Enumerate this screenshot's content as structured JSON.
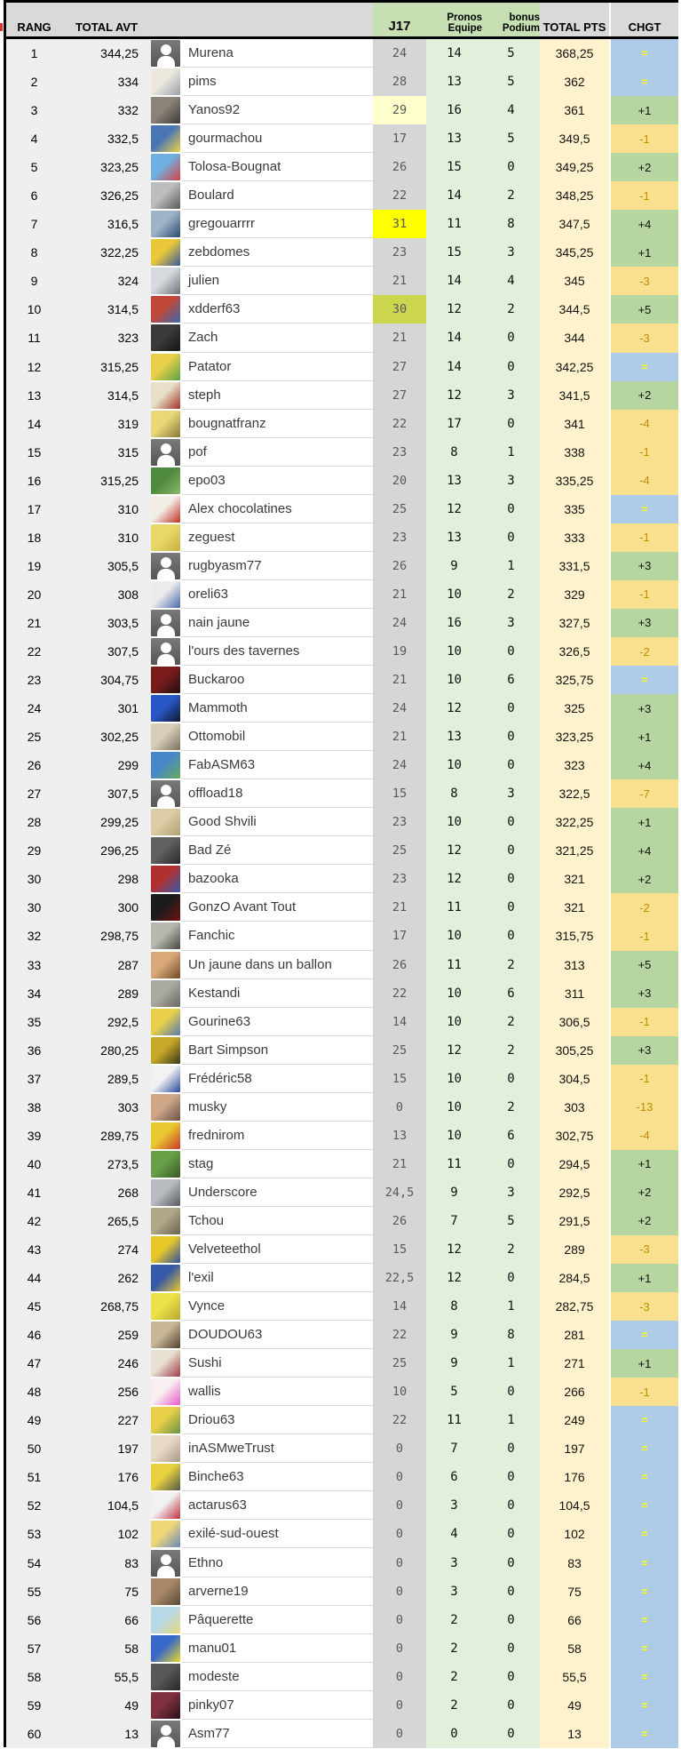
{
  "header": {
    "rank": "RANG",
    "total_avt": "TOTAL AVT",
    "j17": "J17",
    "pronos": {
      "l1": "Pronos",
      "l2": "Equipe"
    },
    "bonus": {
      "l1": "bonus",
      "l2": "Podium"
    },
    "total_pts": "TOTAL PTS",
    "chgt": "CHGT"
  },
  "colors": {
    "header_gray": "#d9d9d9",
    "header_green": "#c6e0b4",
    "body_left_gray": "#efefef",
    "j17_gray": "#d6d6d6",
    "j17_pale_yellow": "#ffffcc",
    "j17_bright_yellow": "#ffff00",
    "j17_lime": "#cbd54d",
    "pronos_green": "#e2efda",
    "pts_cream": "#fff2cc",
    "chgt_blue": "#aecce8",
    "chgt_green": "#b6d5a0",
    "chgt_yellow": "#f8e08e",
    "chgt_equal_text": "#ffff00",
    "chgt_down_text": "#bf8f00"
  },
  "rows": [
    {
      "rank": "1",
      "total_avt": "344,25",
      "name": "Murena",
      "j17": "24",
      "j17_bg": "",
      "pronos": "14",
      "bonus": "5",
      "total_pts": "368,25",
      "chgt": "=",
      "avatar": "default"
    },
    {
      "rank": "2",
      "total_avt": "334",
      "name": "pims",
      "j17": "28",
      "j17_bg": "",
      "pronos": "13",
      "bonus": "5",
      "total_pts": "362",
      "chgt": "=",
      "avatar": [
        "#ece8de",
        "#9aa0a8"
      ]
    },
    {
      "rank": "3",
      "total_avt": "332",
      "name": "Yanos92",
      "j17": "29",
      "j17_bg": "pale",
      "pronos": "16",
      "bonus": "4",
      "total_pts": "361",
      "chgt": "+1",
      "avatar": [
        "#8a8378",
        "#3c3a36"
      ]
    },
    {
      "rank": "4",
      "total_avt": "332,5",
      "name": "gourmachou",
      "j17": "17",
      "j17_bg": "",
      "pronos": "13",
      "bonus": "5",
      "total_pts": "349,5",
      "chgt": "-1",
      "avatar": [
        "#4a76b4",
        "#f0d040"
      ]
    },
    {
      "rank": "5",
      "total_avt": "323,25",
      "name": "Tolosa-Bougnat",
      "j17": "26",
      "j17_bg": "",
      "pronos": "15",
      "bonus": "0",
      "total_pts": "349,25",
      "chgt": "+2",
      "avatar": [
        "#6fb0e0",
        "#d84040"
      ]
    },
    {
      "rank": "6",
      "total_avt": "326,25",
      "name": "Boulard",
      "j17": "22",
      "j17_bg": "",
      "pronos": "14",
      "bonus": "2",
      "total_pts": "348,25",
      "chgt": "-1",
      "avatar": [
        "#bdbdbd",
        "#585858"
      ]
    },
    {
      "rank": "7",
      "total_avt": "316,5",
      "name": "gregouarrrr",
      "j17": "31",
      "j17_bg": "bright",
      "pronos": "11",
      "bonus": "8",
      "total_pts": "347,5",
      "chgt": "+4",
      "avatar": [
        "#9fb3c8",
        "#28496e"
      ]
    },
    {
      "rank": "8",
      "total_avt": "322,25",
      "name": "zebdomes",
      "j17": "23",
      "j17_bg": "",
      "pronos": "15",
      "bonus": "3",
      "total_pts": "345,25",
      "chgt": "+1",
      "avatar": [
        "#e8c838",
        "#3858a0"
      ]
    },
    {
      "rank": "9",
      "total_avt": "324",
      "name": "julien",
      "j17": "21",
      "j17_bg": "",
      "pronos": "14",
      "bonus": "4",
      "total_pts": "345",
      "chgt": "-3",
      "avatar": [
        "#d5dade",
        "#6a7078"
      ]
    },
    {
      "rank": "10",
      "total_avt": "314,5",
      "name": "xdderf63",
      "j17": "30",
      "j17_bg": "lime",
      "pronos": "12",
      "bonus": "2",
      "total_pts": "344,5",
      "chgt": "+5",
      "avatar": [
        "#c04838",
        "#3868b0"
      ]
    },
    {
      "rank": "11",
      "total_avt": "323",
      "name": "Zach",
      "j17": "21",
      "j17_bg": "",
      "pronos": "14",
      "bonus": "0",
      "total_pts": "344",
      "chgt": "-3",
      "avatar": [
        "#3a3a3a",
        "#141414"
      ]
    },
    {
      "rank": "12",
      "total_avt": "315,25",
      "name": "Patator",
      "j17": "27",
      "j17_bg": "",
      "pronos": "14",
      "bonus": "0",
      "total_pts": "342,25",
      "chgt": "=",
      "avatar": [
        "#e8d048",
        "#58a048"
      ]
    },
    {
      "rank": "13",
      "total_avt": "314,5",
      "name": "steph",
      "j17": "27",
      "j17_bg": "",
      "pronos": "12",
      "bonus": "3",
      "total_pts": "341,5",
      "chgt": "+2",
      "avatar": [
        "#e8e0c8",
        "#a03020"
      ]
    },
    {
      "rank": "14",
      "total_avt": "319",
      "name": "bougnatfranz",
      "j17": "22",
      "j17_bg": "",
      "pronos": "17",
      "bonus": "0",
      "total_pts": "341",
      "chgt": "-4",
      "avatar": [
        "#e8d878",
        "#887838"
      ]
    },
    {
      "rank": "15",
      "total_avt": "315",
      "name": "pof",
      "j17": "23",
      "j17_bg": "",
      "pronos": "8",
      "bonus": "1",
      "total_pts": "338",
      "chgt": "-1",
      "avatar": "default"
    },
    {
      "rank": "16",
      "total_avt": "315,25",
      "name": "epo03",
      "j17": "20",
      "j17_bg": "",
      "pronos": "13",
      "bonus": "3",
      "total_pts": "335,25",
      "chgt": "-4",
      "avatar": [
        "#4f8a3f",
        "#88b868"
      ]
    },
    {
      "rank": "17",
      "total_avt": "310",
      "name": "Alex chocolatines",
      "j17": "25",
      "j17_bg": "",
      "pronos": "12",
      "bonus": "0",
      "total_pts": "335",
      "chgt": "=",
      "avatar": [
        "#f2eee6",
        "#c03028"
      ]
    },
    {
      "rank": "18",
      "total_avt": "310",
      "name": "zeguest",
      "j17": "23",
      "j17_bg": "",
      "pronos": "13",
      "bonus": "0",
      "total_pts": "333",
      "chgt": "-1",
      "avatar": [
        "#e8d868",
        "#c8b040"
      ]
    },
    {
      "rank": "19",
      "total_avt": "305,5",
      "name": "rugbyasm77",
      "j17": "26",
      "j17_bg": "",
      "pronos": "9",
      "bonus": "1",
      "total_pts": "331,5",
      "chgt": "+3",
      "avatar": "default"
    },
    {
      "rank": "20",
      "total_avt": "308",
      "name": "oreli63",
      "j17": "21",
      "j17_bg": "",
      "pronos": "10",
      "bonus": "2",
      "total_pts": "329",
      "chgt": "-1",
      "avatar": [
        "#ececec",
        "#4868a8"
      ]
    },
    {
      "rank": "21",
      "total_avt": "303,5",
      "name": "nain jaune",
      "j17": "24",
      "j17_bg": "",
      "pronos": "16",
      "bonus": "3",
      "total_pts": "327,5",
      "chgt": "+3",
      "avatar": "default"
    },
    {
      "rank": "22",
      "total_avt": "307,5",
      "name": "l'ours des tavernes",
      "j17": "19",
      "j17_bg": "",
      "pronos": "10",
      "bonus": "0",
      "total_pts": "326,5",
      "chgt": "-2",
      "avatar": "default"
    },
    {
      "rank": "23",
      "total_avt": "304,75",
      "name": "Buckaroo",
      "j17": "21",
      "j17_bg": "",
      "pronos": "10",
      "bonus": "6",
      "total_pts": "325,75",
      "chgt": "=",
      "avatar": [
        "#7a1c1c",
        "#221010"
      ]
    },
    {
      "rank": "24",
      "total_avt": "301",
      "name": "Mammoth",
      "j17": "24",
      "j17_bg": "",
      "pronos": "12",
      "bonus": "0",
      "total_pts": "325",
      "chgt": "+3",
      "avatar": [
        "#2858c8",
        "#101830"
      ]
    },
    {
      "rank": "25",
      "total_avt": "302,25",
      "name": "Ottomobil",
      "j17": "21",
      "j17_bg": "",
      "pronos": "13",
      "bonus": "0",
      "total_pts": "323,25",
      "chgt": "+1",
      "avatar": [
        "#d8cdb8",
        "#787060"
      ]
    },
    {
      "rank": "26",
      "total_avt": "299",
      "name": "FabASM63",
      "j17": "24",
      "j17_bg": "",
      "pronos": "10",
      "bonus": "0",
      "total_pts": "323",
      "chgt": "+4",
      "avatar": [
        "#4888c8",
        "#68a858"
      ]
    },
    {
      "rank": "27",
      "total_avt": "307,5",
      "name": "offload18",
      "j17": "15",
      "j17_bg": "",
      "pronos": "8",
      "bonus": "3",
      "total_pts": "322,5",
      "chgt": "-7",
      "avatar": "default"
    },
    {
      "rank": "28",
      "total_avt": "299,25",
      "name": "Good Shvili",
      "j17": "23",
      "j17_bg": "",
      "pronos": "10",
      "bonus": "0",
      "total_pts": "322,25",
      "chgt": "+1",
      "avatar": [
        "#dccca6",
        "#b0a070"
      ]
    },
    {
      "rank": "29",
      "total_avt": "296,25",
      "name": "Bad Zé",
      "j17": "25",
      "j17_bg": "",
      "pronos": "12",
      "bonus": "0",
      "total_pts": "321,25",
      "chgt": "+4",
      "avatar": [
        "#606060",
        "#282828"
      ]
    },
    {
      "rank": "30",
      "total_avt": "298",
      "name": "bazooka",
      "j17": "23",
      "j17_bg": "",
      "pronos": "12",
      "bonus": "0",
      "total_pts": "321",
      "chgt": "+2",
      "avatar": [
        "#b03030",
        "#3858a8"
      ]
    },
    {
      "rank": "30",
      "total_avt": "300",
      "name": "GonzO Avant Tout",
      "j17": "21",
      "j17_bg": "",
      "pronos": "11",
      "bonus": "0",
      "total_pts": "321",
      "chgt": "-2",
      "avatar": [
        "#1c1c1c",
        "#701010"
      ]
    },
    {
      "rank": "32",
      "total_avt": "298,75",
      "name": "Fanchic",
      "j17": "17",
      "j17_bg": "",
      "pronos": "10",
      "bonus": "0",
      "total_pts": "315,75",
      "chgt": "-1",
      "avatar": [
        "#b8b8b0",
        "#484840"
      ]
    },
    {
      "rank": "33",
      "total_avt": "287",
      "name": "Un jaune dans un ballon",
      "j17": "26",
      "j17_bg": "",
      "pronos": "11",
      "bonus": "2",
      "total_pts": "313",
      "chgt": "+5",
      "avatar": [
        "#d8a878",
        "#704828"
      ]
    },
    {
      "rank": "34",
      "total_avt": "289",
      "name": "Kestandi",
      "j17": "22",
      "j17_bg": "",
      "pronos": "10",
      "bonus": "6",
      "total_pts": "311",
      "chgt": "+3",
      "avatar": [
        "#aaaaa2",
        "#686860"
      ]
    },
    {
      "rank": "35",
      "total_avt": "292,5",
      "name": "Gourine63",
      "j17": "14",
      "j17_bg": "",
      "pronos": "10",
      "bonus": "2",
      "total_pts": "306,5",
      "chgt": "-1",
      "avatar": [
        "#e8d048",
        "#5878b0"
      ]
    },
    {
      "rank": "36",
      "total_avt": "280,25",
      "name": "Bart Simpson",
      "j17": "25",
      "j17_bg": "",
      "pronos": "12",
      "bonus": "2",
      "total_pts": "305,25",
      "chgt": "+3",
      "avatar": [
        "#c8a828",
        "#383818"
      ]
    },
    {
      "rank": "37",
      "total_avt": "289,5",
      "name": "Frédéric58",
      "j17": "15",
      "j17_bg": "",
      "pronos": "10",
      "bonus": "0",
      "total_pts": "304,5",
      "chgt": "-1",
      "avatar": [
        "#f2f2f2",
        "#2848a0"
      ]
    },
    {
      "rank": "38",
      "total_avt": "303",
      "name": "musky",
      "j17": "0",
      "j17_bg": "",
      "pronos": "10",
      "bonus": "2",
      "total_pts": "303",
      "chgt": "-13",
      "avatar": [
        "#d0a888",
        "#685048"
      ]
    },
    {
      "rank": "39",
      "total_avt": "289,75",
      "name": "frednirom",
      "j17": "13",
      "j17_bg": "",
      "pronos": "10",
      "bonus": "6",
      "total_pts": "302,75",
      "chgt": "-4",
      "avatar": [
        "#e8c830",
        "#c83828"
      ]
    },
    {
      "rank": "40",
      "total_avt": "273,5",
      "name": "stag",
      "j17": "21",
      "j17_bg": "",
      "pronos": "11",
      "bonus": "0",
      "total_pts": "294,5",
      "chgt": "+1",
      "avatar": [
        "#68a048",
        "#385828"
      ]
    },
    {
      "rank": "41",
      "total_avt": "268",
      "name": "Underscore",
      "j17": "24,5",
      "j17_bg": "",
      "pronos": "9",
      "bonus": "3",
      "total_pts": "292,5",
      "chgt": "+2",
      "avatar": [
        "#b8bcc0",
        "#585c60"
      ]
    },
    {
      "rank": "42",
      "total_avt": "265,5",
      "name": "Tchou",
      "j17": "26",
      "j17_bg": "",
      "pronos": "7",
      "bonus": "5",
      "total_pts": "291,5",
      "chgt": "+2",
      "avatar": [
        "#b0a888",
        "#6a6250"
      ]
    },
    {
      "rank": "43",
      "total_avt": "274",
      "name": "Velveteethol",
      "j17": "15",
      "j17_bg": "",
      "pronos": "12",
      "bonus": "2",
      "total_pts": "289",
      "chgt": "-3",
      "avatar": [
        "#e8c828",
        "#3050a0"
      ]
    },
    {
      "rank": "44",
      "total_avt": "262",
      "name": "l'exil",
      "j17": "22,5",
      "j17_bg": "",
      "pronos": "12",
      "bonus": "0",
      "total_pts": "284,5",
      "chgt": "+1",
      "avatar": [
        "#3858a8",
        "#e8c828"
      ]
    },
    {
      "rank": "45",
      "total_avt": "268,75",
      "name": "Vynce",
      "j17": "14",
      "j17_bg": "",
      "pronos": "8",
      "bonus": "1",
      "total_pts": "282,75",
      "chgt": "-3",
      "avatar": [
        "#eae249",
        "#b8a830"
      ]
    },
    {
      "rank": "46",
      "total_avt": "259",
      "name": "DOUDOU63",
      "j17": "22",
      "j17_bg": "",
      "pronos": "9",
      "bonus": "8",
      "total_pts": "281",
      "chgt": "=",
      "avatar": [
        "#c8b898",
        "#504030"
      ]
    },
    {
      "rank": "47",
      "total_avt": "246",
      "name": "Sushi",
      "j17": "25",
      "j17_bg": "",
      "pronos": "9",
      "bonus": "1",
      "total_pts": "271",
      "chgt": "+1",
      "avatar": [
        "#e8e0d0",
        "#a03848"
      ]
    },
    {
      "rank": "48",
      "total_avt": "256",
      "name": "wallis",
      "j17": "10",
      "j17_bg": "",
      "pronos": "5",
      "bonus": "0",
      "total_pts": "266",
      "chgt": "-1",
      "avatar": [
        "#f8f0f0",
        "#e858c8"
      ]
    },
    {
      "rank": "49",
      "total_avt": "227",
      "name": "Driou63",
      "j17": "22",
      "j17_bg": "",
      "pronos": "11",
      "bonus": "1",
      "total_pts": "249",
      "chgt": "=",
      "avatar": [
        "#e8d048",
        "#689048"
      ]
    },
    {
      "rank": "50",
      "total_avt": "197",
      "name": "inASMweTrust",
      "j17": "0",
      "j17_bg": "",
      "pronos": "7",
      "bonus": "0",
      "total_pts": "197",
      "chgt": "=",
      "avatar": [
        "#e8d8c8",
        "#a89888"
      ]
    },
    {
      "rank": "51",
      "total_avt": "176",
      "name": "Binche63",
      "j17": "0",
      "j17_bg": "",
      "pronos": "6",
      "bonus": "0",
      "total_pts": "176",
      "chgt": "=",
      "avatar": [
        "#e8d040",
        "#505848"
      ]
    },
    {
      "rank": "52",
      "total_avt": "104,5",
      "name": "actarus63",
      "j17": "0",
      "j17_bg": "",
      "pronos": "3",
      "bonus": "0",
      "total_pts": "104,5",
      "chgt": "=",
      "avatar": [
        "#f2f2f2",
        "#c03040"
      ]
    },
    {
      "rank": "53",
      "total_avt": "102",
      "name": "exilé-sud-ouest",
      "j17": "0",
      "j17_bg": "",
      "pronos": "4",
      "bonus": "0",
      "total_pts": "102",
      "chgt": "=",
      "avatar": [
        "#f0d878",
        "#6888c0"
      ]
    },
    {
      "rank": "54",
      "total_avt": "83",
      "name": "Ethno",
      "j17": "0",
      "j17_bg": "",
      "pronos": "3",
      "bonus": "0",
      "total_pts": "83",
      "chgt": "=",
      "avatar": "default"
    },
    {
      "rank": "55",
      "total_avt": "75",
      "name": "arverne19",
      "j17": "0",
      "j17_bg": "",
      "pronos": "3",
      "bonus": "0",
      "total_pts": "75",
      "chgt": "=",
      "avatar": [
        "#a88868",
        "#584838"
      ]
    },
    {
      "rank": "56",
      "total_avt": "66",
      "name": "Pâquerette",
      "j17": "0",
      "j17_bg": "",
      "pronos": "2",
      "bonus": "0",
      "total_pts": "66",
      "chgt": "=",
      "avatar": [
        "#b8d8e8",
        "#e8d878"
      ]
    },
    {
      "rank": "57",
      "total_avt": "58",
      "name": "manu01",
      "j17": "0",
      "j17_bg": "",
      "pronos": "2",
      "bonus": "0",
      "total_pts": "58",
      "chgt": "=",
      "avatar": [
        "#3868c8",
        "#e8d828"
      ]
    },
    {
      "rank": "58",
      "total_avt": "55,5",
      "name": "modeste",
      "j17": "0",
      "j17_bg": "",
      "pronos": "2",
      "bonus": "0",
      "total_pts": "55,5",
      "chgt": "=",
      "avatar": [
        "#585858",
        "#282828"
      ]
    },
    {
      "rank": "59",
      "total_avt": "49",
      "name": "pinky07",
      "j17": "0",
      "j17_bg": "",
      "pronos": "2",
      "bonus": "0",
      "total_pts": "49",
      "chgt": "=",
      "avatar": [
        "#803040",
        "#281018"
      ]
    },
    {
      "rank": "60",
      "total_avt": "13",
      "name": "Asm77",
      "j17": "0",
      "j17_bg": "",
      "pronos": "0",
      "bonus": "0",
      "total_pts": "13",
      "chgt": "=",
      "avatar": "default"
    }
  ]
}
